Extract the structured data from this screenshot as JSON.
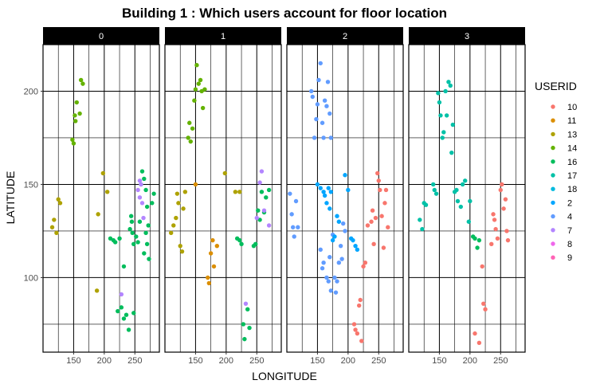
{
  "chart_data": {
    "type": "scatter",
    "title": "Building 1 : Which users account for floor location",
    "xlabel": "LONGITUDE",
    "ylabel": "LATITUDE",
    "facet_labels": [
      "0",
      "1",
      "2",
      "3"
    ],
    "x_ticks": [
      "150",
      "200",
      "250"
    ],
    "y_ticks": [
      "100",
      "150",
      "200"
    ],
    "xlim": [
      100,
      290
    ],
    "ylim": [
      60,
      225
    ],
    "grid": true,
    "legend": {
      "title": "USERID",
      "placement": "right",
      "entries": [
        {
          "label": "10",
          "color": "#F8766D"
        },
        {
          "label": "11",
          "color": "#DB8E00"
        },
        {
          "label": "13",
          "color": "#AEA200"
        },
        {
          "label": "14",
          "color": "#64B200"
        },
        {
          "label": "16",
          "color": "#00BD5C"
        },
        {
          "label": "17",
          "color": "#00C1A7"
        },
        {
          "label": "18",
          "color": "#00BADE"
        },
        {
          "label": "2",
          "color": "#00A6FF"
        },
        {
          "label": "4",
          "color": "#619CFF"
        },
        {
          "label": "7",
          "color": "#B385FF"
        },
        {
          "label": "8",
          "color": "#EF67EB"
        },
        {
          "label": "9",
          "color": "#FF63B6"
        }
      ]
    },
    "series": [
      {
        "name": "13",
        "facet": "0",
        "points": [
          [
            115,
            127
          ],
          [
            118,
            131
          ],
          [
            122,
            124
          ],
          [
            125,
            142
          ],
          [
            128,
            140
          ]
        ]
      },
      {
        "name": "14",
        "facet": "0",
        "points": [
          [
            148,
            174
          ],
          [
            150,
            172
          ],
          [
            152,
            187
          ],
          [
            155,
            194
          ],
          [
            153,
            184
          ],
          [
            160,
            188
          ],
          [
            162,
            206
          ],
          [
            165,
            204
          ]
        ]
      },
      {
        "name": "13",
        "facet": "0",
        "points": [
          [
            188,
            93
          ],
          [
            190,
            134
          ],
          [
            198,
            156
          ],
          [
            205,
            146
          ]
        ]
      },
      {
        "name": "16",
        "facet": "0",
        "points": [
          [
            210,
            121
          ],
          [
            215,
            120
          ],
          [
            218,
            119
          ],
          [
            222,
            82
          ],
          [
            225,
            121
          ],
          [
            228,
            84
          ],
          [
            232,
            106
          ],
          [
            232,
            78
          ],
          [
            236,
            80
          ],
          [
            240,
            72
          ],
          [
            242,
            126
          ],
          [
            245,
            130
          ],
          [
            248,
            81
          ],
          [
            248,
            118
          ],
          [
            252,
            122
          ],
          [
            255,
            119
          ],
          [
            258,
            130
          ],
          [
            260,
            150
          ],
          [
            262,
            157
          ],
          [
            265,
            153
          ],
          [
            268,
            147
          ],
          [
            270,
            138
          ],
          [
            265,
            113
          ],
          [
            270,
            118
          ],
          [
            273,
            110
          ],
          [
            278,
            140
          ],
          [
            281,
            145
          ],
          [
            272,
            128
          ],
          [
            268,
            124
          ],
          [
            246,
            124
          ],
          [
            244,
            133
          ]
        ]
      },
      {
        "name": "7",
        "facet": "0",
        "points": [
          [
            228,
            91
          ],
          [
            255,
            147
          ],
          [
            258,
            143
          ],
          [
            260,
            150
          ],
          [
            262,
            140
          ],
          [
            264,
            132
          ],
          [
            258,
            152
          ]
        ]
      },
      {
        "name": "13",
        "facet": "1",
        "points": [
          [
            110,
            124
          ],
          [
            114,
            128
          ],
          [
            118,
            132
          ],
          [
            120,
            145
          ],
          [
            122,
            140
          ],
          [
            125,
            117
          ],
          [
            128,
            114
          ],
          [
            130,
            137
          ],
          [
            133,
            146
          ]
        ]
      },
      {
        "name": "14",
        "facet": "1",
        "points": [
          [
            138,
            175
          ],
          [
            140,
            183
          ],
          [
            142,
            173
          ],
          [
            145,
            180
          ],
          [
            148,
            195
          ],
          [
            150,
            201
          ],
          [
            152,
            214
          ],
          [
            155,
            204
          ],
          [
            158,
            206
          ],
          [
            160,
            200
          ],
          [
            162,
            191
          ],
          [
            165,
            201
          ]
        ]
      },
      {
        "name": "11",
        "facet": "1",
        "points": [
          [
            150,
            150
          ],
          [
            170,
            100
          ],
          [
            172,
            97
          ],
          [
            175,
            113
          ],
          [
            178,
            120
          ],
          [
            180,
            106
          ],
          [
            185,
            117
          ]
        ]
      },
      {
        "name": "13",
        "facet": "1",
        "points": [
          [
            198,
            156
          ],
          [
            215,
            146
          ],
          [
            222,
            146
          ]
        ]
      },
      {
        "name": "16",
        "facet": "1",
        "points": [
          [
            218,
            121
          ],
          [
            222,
            120
          ],
          [
            225,
            118
          ],
          [
            228,
            75
          ],
          [
            230,
            67
          ],
          [
            235,
            83
          ],
          [
            238,
            73
          ],
          [
            245,
            117
          ],
          [
            248,
            118
          ],
          [
            252,
            136
          ],
          [
            255,
            131
          ],
          [
            258,
            146
          ],
          [
            262,
            135
          ],
          [
            265,
            143
          ],
          [
            270,
            147
          ]
        ]
      },
      {
        "name": "7",
        "facet": "1",
        "points": [
          [
            232,
            86
          ],
          [
            250,
            132
          ],
          [
            255,
            151
          ],
          [
            258,
            157
          ],
          [
            262,
            136
          ],
          [
            270,
            128
          ]
        ]
      },
      {
        "name": "4",
        "facet": "2",
        "points": [
          [
            105,
            145
          ],
          [
            108,
            134
          ],
          [
            110,
            127
          ],
          [
            112,
            122
          ],
          [
            115,
            141
          ],
          [
            118,
            127
          ],
          [
            140,
            200
          ],
          [
            142,
            197
          ],
          [
            145,
            175
          ],
          [
            148,
            185
          ],
          [
            150,
            193
          ],
          [
            152,
            206
          ],
          [
            155,
            215
          ],
          [
            158,
            183
          ],
          [
            160,
            175
          ],
          [
            162,
            195
          ],
          [
            165,
            192
          ],
          [
            167,
            205
          ],
          [
            170,
            188
          ],
          [
            172,
            175
          ],
          [
            155,
            115
          ],
          [
            158,
            105
          ],
          [
            160,
            108
          ],
          [
            165,
            100
          ],
          [
            168,
            98
          ],
          [
            170,
            111
          ],
          [
            172,
            93
          ],
          [
            175,
            123
          ],
          [
            178,
            100
          ],
          [
            180,
            92
          ],
          [
            182,
            98
          ],
          [
            185,
            108
          ],
          [
            188,
            117
          ],
          [
            190,
            110
          ],
          [
            192,
            129
          ],
          [
            195,
            125
          ]
        ]
      },
      {
        "name": "2",
        "facet": "2",
        "points": [
          [
            150,
            150
          ],
          [
            155,
            148
          ],
          [
            160,
            146
          ],
          [
            162,
            144
          ],
          [
            165,
            140
          ],
          [
            168,
            148
          ],
          [
            170,
            137
          ],
          [
            172,
            146
          ],
          [
            175,
            120
          ],
          [
            178,
            122
          ],
          [
            182,
            133
          ],
          [
            185,
            130
          ],
          [
            195,
            155
          ],
          [
            200,
            147
          ],
          [
            205,
            121
          ],
          [
            208,
            120
          ],
          [
            212,
            117
          ],
          [
            215,
            115
          ]
        ]
      },
      {
        "name": "10",
        "facet": "2",
        "points": [
          [
            210,
            75
          ],
          [
            212,
            72
          ],
          [
            215,
            70
          ],
          [
            218,
            85
          ],
          [
            220,
            88
          ],
          [
            222,
            66
          ],
          [
            225,
            106
          ],
          [
            228,
            108
          ],
          [
            232,
            128
          ],
          [
            238,
            130
          ],
          [
            240,
            136
          ],
          [
            242,
            118
          ],
          [
            245,
            132
          ],
          [
            248,
            156
          ],
          [
            250,
            152
          ],
          [
            252,
            147
          ],
          [
            255,
            133
          ],
          [
            258,
            116
          ],
          [
            260,
            140
          ],
          [
            262,
            147
          ],
          [
            265,
            127
          ]
        ]
      },
      {
        "name": "17",
        "facet": "3",
        "points": [
          [
            118,
            131
          ],
          [
            122,
            126
          ],
          [
            125,
            140
          ],
          [
            128,
            139
          ],
          [
            140,
            150
          ],
          [
            142,
            147
          ],
          [
            145,
            145
          ],
          [
            148,
            199
          ],
          [
            150,
            194
          ],
          [
            152,
            187
          ],
          [
            155,
            175
          ],
          [
            157,
            178
          ],
          [
            160,
            200
          ],
          [
            162,
            187
          ],
          [
            165,
            205
          ],
          [
            168,
            203
          ],
          [
            170,
            167
          ],
          [
            172,
            182
          ],
          [
            175,
            146
          ],
          [
            178,
            147
          ],
          [
            180,
            141
          ],
          [
            185,
            138
          ],
          [
            188,
            150
          ],
          [
            192,
            152
          ],
          [
            198,
            130
          ],
          [
            200,
            141
          ]
        ]
      },
      {
        "name": "16",
        "facet": "3",
        "points": [
          [
            205,
            122
          ],
          [
            208,
            121
          ],
          [
            212,
            116
          ],
          [
            215,
            120
          ]
        ]
      },
      {
        "name": "10",
        "facet": "3",
        "points": [
          [
            208,
            70
          ],
          [
            215,
            65
          ],
          [
            220,
            106
          ],
          [
            222,
            86
          ],
          [
            225,
            83
          ],
          [
            235,
            118
          ],
          [
            238,
            134
          ],
          [
            240,
            131
          ],
          [
            242,
            126
          ],
          [
            245,
            121
          ],
          [
            250,
            147
          ],
          [
            252,
            150
          ],
          [
            255,
            137
          ],
          [
            258,
            142
          ],
          [
            260,
            125
          ],
          [
            262,
            120
          ]
        ]
      }
    ]
  }
}
